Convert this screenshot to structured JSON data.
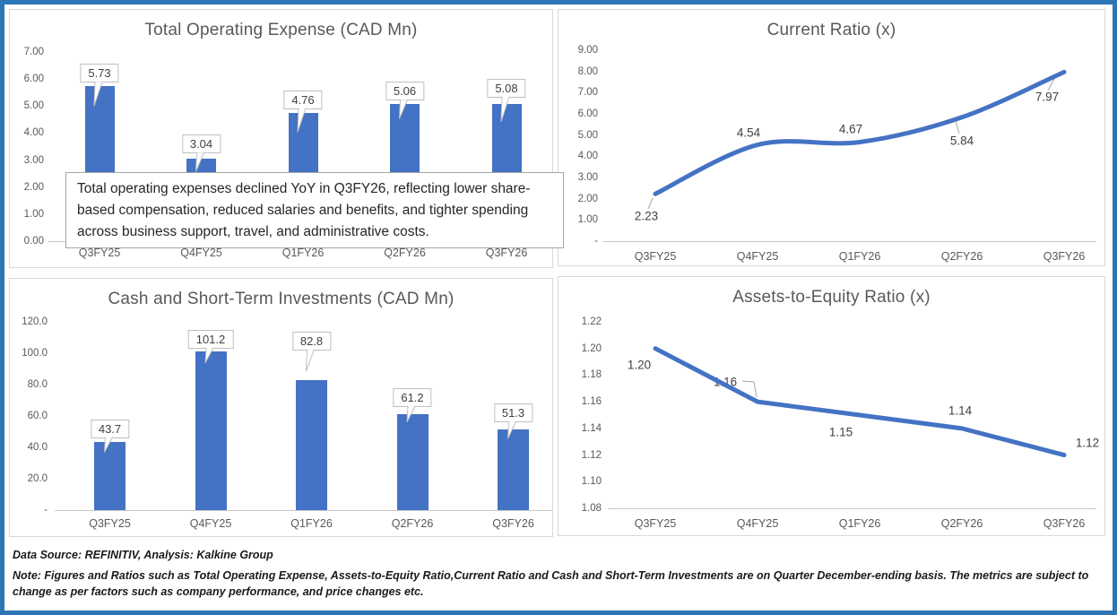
{
  "colors": {
    "bar": "#4472C4",
    "line": "#4472C4",
    "frame": "#2E75B6",
    "title": "#595959",
    "axis": "#595959",
    "data_label": "#404040",
    "panel_border": "#D9D9D9",
    "callout_border": "#BFBFBF",
    "leader": "#A6A6A6",
    "note_text": "#1A1A1A"
  },
  "categories": [
    "Q3FY25",
    "Q4FY25",
    "Q1FY26",
    "Q2FY26",
    "Q3FY26"
  ],
  "chart_data": [
    {
      "type": "bar",
      "title": "Total Operating Expense (CAD Mn)",
      "categories": [
        "Q3FY25",
        "Q4FY25",
        "Q1FY26",
        "Q2FY26",
        "Q3FY26"
      ],
      "values": [
        5.73,
        3.04,
        4.76,
        5.06,
        5.08
      ],
      "data_labels": [
        "5.73",
        "3.04",
        "4.76",
        "5.06",
        "5.08"
      ],
      "ylim": [
        0,
        7
      ],
      "yticks": [
        "7.00",
        "6.00",
        "5.00",
        "4.00",
        "3.00",
        "2.00",
        "1.00",
        "0.00"
      ],
      "xlabel": "",
      "ylabel": "",
      "grid": false,
      "legend": "none",
      "annotation": "Total operating expenses declined YoY in Q3FY26, reflecting lower share-based compensation, reduced salaries and benefits, and tighter spending across business support, travel, and administrative costs."
    },
    {
      "type": "line",
      "title": "Current Ratio (x)",
      "categories": [
        "Q3FY25",
        "Q4FY25",
        "Q1FY26",
        "Q2FY26",
        "Q3FY26"
      ],
      "values": [
        2.23,
        4.54,
        4.67,
        5.84,
        7.97
      ],
      "data_labels": [
        "2.23",
        "4.54",
        "4.67",
        "5.84",
        "7.97"
      ],
      "ylim": [
        0,
        9
      ],
      "yticks": [
        "9.00",
        "8.00",
        "7.00",
        "6.00",
        "5.00",
        "4.00",
        "3.00",
        "2.00",
        "1.00",
        "-"
      ],
      "xlabel": "",
      "ylabel": "",
      "grid": false,
      "legend": "none",
      "smooth": true
    },
    {
      "type": "bar",
      "title": "Cash and Short-Term Investments (CAD Mn)",
      "categories": [
        "Q3FY25",
        "Q4FY25",
        "Q1FY26",
        "Q2FY26",
        "Q3FY26"
      ],
      "values": [
        43.7,
        101.2,
        82.8,
        61.2,
        51.3
      ],
      "data_labels": [
        "43.7",
        "101.2",
        "82.8",
        "61.2",
        "51.3"
      ],
      "ylim": [
        0,
        120
      ],
      "yticks": [
        "120.0",
        "100.0",
        "80.0",
        "60.0",
        "40.0",
        "20.0",
        "-"
      ],
      "xlabel": "",
      "ylabel": "",
      "grid": false,
      "legend": "none"
    },
    {
      "type": "line",
      "title": "Assets-to-Equity Ratio (x)",
      "categories": [
        "Q3FY25",
        "Q4FY25",
        "Q1FY26",
        "Q2FY26",
        "Q3FY26"
      ],
      "values": [
        1.2,
        1.16,
        1.15,
        1.14,
        1.12
      ],
      "data_labels": [
        "1.20",
        "1.16",
        "1.15",
        "1.14",
        "1.12"
      ],
      "ylim": [
        1.08,
        1.22
      ],
      "yticks": [
        "1.22",
        "1.20",
        "1.18",
        "1.16",
        "1.14",
        "1.12",
        "1.10",
        "1.08"
      ],
      "xlabel": "",
      "ylabel": "",
      "grid": false,
      "legend": "none",
      "smooth": false
    }
  ],
  "footer": {
    "source": "Data Source: REFINITIV, Analysis: Kalkine Group",
    "note": "Note: Figures and Ratios such as Total Operating Expense, Assets-to-Equity Ratio,Current Ratio and Cash and Short-Term Investments are on Quarter December-ending basis. The metrics are subject to change as per factors such as company performance, and price changes etc."
  }
}
